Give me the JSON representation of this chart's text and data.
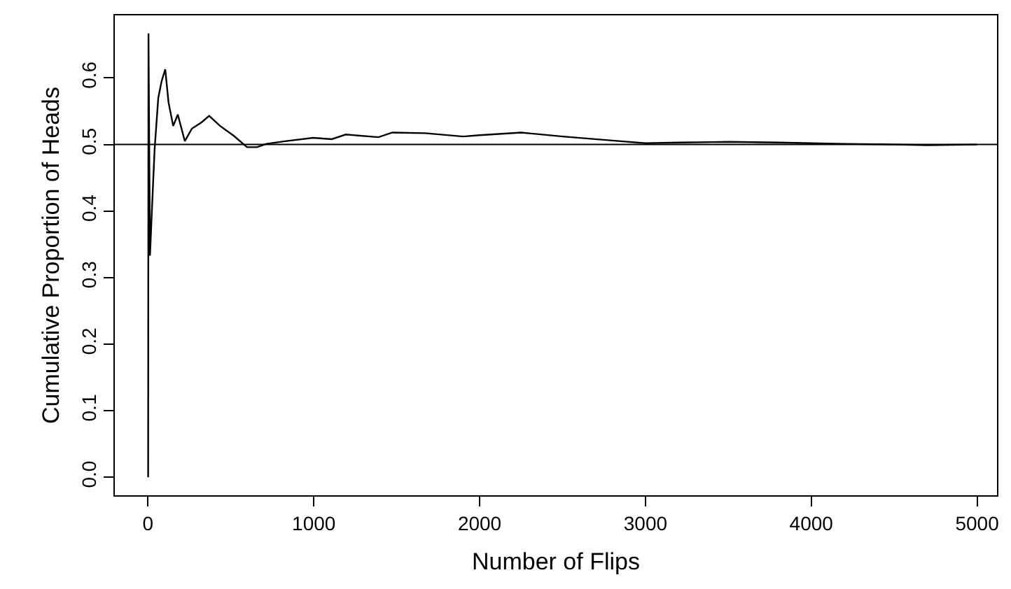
{
  "chart_data": {
    "type": "line",
    "xlabel": "Number of Flips",
    "ylabel": "Cumulative Proportion of Heads",
    "x": [
      1,
      3,
      12,
      25,
      40,
      62,
      82,
      104,
      124,
      152,
      180,
      222,
      265,
      321,
      369,
      434,
      518,
      597,
      658,
      714,
      827,
      996,
      1108,
      1193,
      1390,
      1474,
      1671,
      1900,
      2000,
      2250,
      2500,
      2800,
      3000,
      3200,
      3500,
      3800,
      4000,
      4200,
      4500,
      4700,
      5000
    ],
    "series": [
      {
        "color": "#000000",
        "values": [
          0,
          0.667,
          0.333,
          0.409,
          0.493,
          0.57,
          0.595,
          0.613,
          0.563,
          0.528,
          0.545,
          0.505,
          0.524,
          0.533,
          0.543,
          0.528,
          0.513,
          0.496,
          0.496,
          0.501,
          0.505,
          0.51,
          0.508,
          0.515,
          0.511,
          0.518,
          0.517,
          0.512,
          0.514,
          0.518,
          0.512,
          0.506,
          0.502,
          0.503,
          0.504,
          0.503,
          0.502,
          0.501,
          0.5,
          0.499,
          0.5
        ]
      }
    ],
    "xlim": [
      -200,
      5120
    ],
    "ylim": [
      -0.027,
      0.694
    ],
    "xticks": [
      0,
      1000,
      2000,
      3000,
      4000,
      5000
    ],
    "yticks": [
      {
        "value": 0,
        "label": "0.0"
      },
      {
        "value": 0.1,
        "label": "0.1"
      },
      {
        "value": 0.2,
        "label": "0.2"
      },
      {
        "value": 0.3,
        "label": "0.3"
      },
      {
        "value": 0.4,
        "label": "0.4"
      },
      {
        "value": 0.5,
        "label": "0.5"
      },
      {
        "value": 0.6,
        "label": "0.6"
      }
    ],
    "ref_lines": [
      {
        "axis": "y",
        "value": 0.5,
        "color": "#000000"
      }
    ],
    "grid": false,
    "marker": "none",
    "line_style": "solid"
  }
}
